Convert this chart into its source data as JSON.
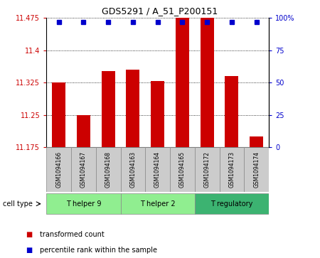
{
  "title": "GDS5291 / A_51_P200151",
  "samples": [
    "GSM1094166",
    "GSM1094167",
    "GSM1094168",
    "GSM1094163",
    "GSM1094164",
    "GSM1094165",
    "GSM1094172",
    "GSM1094173",
    "GSM1094174"
  ],
  "bar_values": [
    11.325,
    11.25,
    11.352,
    11.355,
    11.328,
    11.475,
    11.475,
    11.34,
    11.2
  ],
  "percentile_values": [
    97,
    97,
    97,
    97,
    97,
    97,
    97,
    97,
    97
  ],
  "ylim_left": [
    11.175,
    11.475
  ],
  "ylim_right": [
    0,
    100
  ],
  "yticks_left": [
    11.175,
    11.25,
    11.325,
    11.4,
    11.475
  ],
  "yticks_right": [
    0,
    25,
    50,
    75,
    100
  ],
  "ytick_labels_left": [
    "11.175",
    "11.25",
    "11.325",
    "11.4",
    "11.475"
  ],
  "ytick_labels_right": [
    "0",
    "25",
    "50",
    "75",
    "100%"
  ],
  "cell_types": [
    {
      "label": "T helper 9",
      "start": 0,
      "end": 3,
      "color": "#90EE90"
    },
    {
      "label": "T helper 2",
      "start": 3,
      "end": 6,
      "color": "#90EE90"
    },
    {
      "label": "T regulatory",
      "start": 6,
      "end": 9,
      "color": "#3CB371"
    }
  ],
  "bar_color": "#CC0000",
  "percentile_color": "#0000CC",
  "bar_width": 0.55,
  "grid_color": "#000000",
  "xlabel_color": "#CC0000",
  "ylabel_right_color": "#0000CC",
  "legend_bar_label": "transformed count",
  "legend_pct_label": "percentile rank within the sample",
  "cell_type_label": "cell type",
  "percentile_marker_size": 5,
  "sample_fontsize": 5.5,
  "title_fontsize": 9,
  "tick_fontsize": 7,
  "legend_fontsize": 7,
  "celltype_fontsize": 7
}
